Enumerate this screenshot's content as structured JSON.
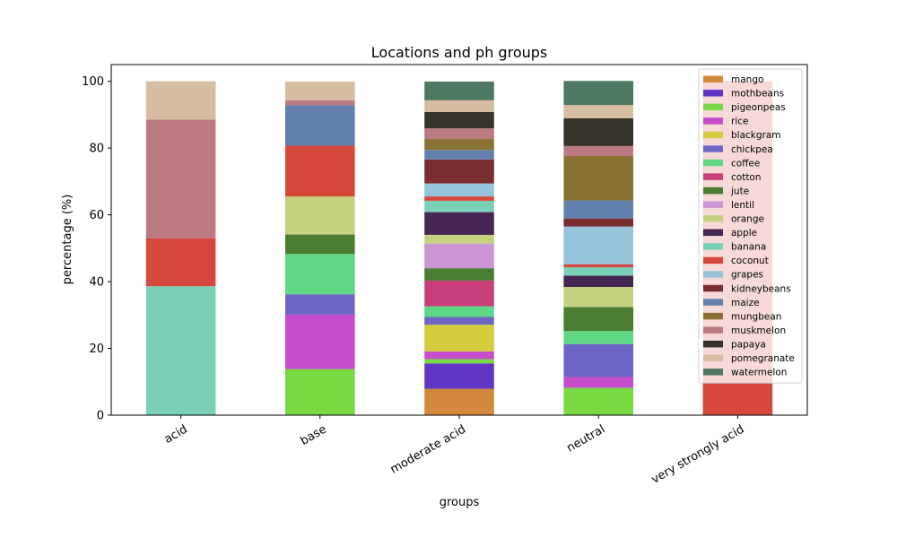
{
  "chart_data": {
    "type": "bar",
    "stacked": true,
    "title": "Locations and ph groups",
    "xlabel": "groups",
    "ylabel": "percentage (%)",
    "ylim": [
      0,
      105
    ],
    "yticks": [
      "0",
      "20",
      "40",
      "60",
      "80",
      "100"
    ],
    "categories": [
      "acid",
      "base",
      "moderate acid",
      "neutral",
      "very strongly acid"
    ],
    "legend_position": "upper right",
    "series": [
      {
        "name": "mango",
        "color": "#d4883c",
        "values": [
          0,
          0,
          7.9,
          0,
          0
        ]
      },
      {
        "name": "mothbeans",
        "color": "#6236c4",
        "values": [
          0,
          0,
          7.6,
          0,
          0
        ]
      },
      {
        "name": "pigeonpeas",
        "color": "#79d943",
        "values": [
          0,
          13.8,
          1.3,
          8.2,
          0
        ]
      },
      {
        "name": "rice",
        "color": "#c64ccc",
        "values": [
          0,
          16.3,
          2.3,
          3.2,
          0
        ]
      },
      {
        "name": "blackgram",
        "color": "#d3cc3d",
        "values": [
          0,
          0,
          8.0,
          0,
          0
        ]
      },
      {
        "name": "chickpea",
        "color": "#6e66c6",
        "values": [
          0,
          6.1,
          2.3,
          9.9,
          0
        ]
      },
      {
        "name": "coffee",
        "color": "#5fd785",
        "values": [
          0,
          12.1,
          3.2,
          3.9,
          0
        ]
      },
      {
        "name": "cotton",
        "color": "#c7407b",
        "values": [
          0,
          0,
          7.7,
          0,
          0
        ]
      },
      {
        "name": "jute",
        "color": "#4a7c32",
        "values": [
          0,
          5.8,
          3.7,
          7.2,
          0
        ]
      },
      {
        "name": "lentil",
        "color": "#cc95d5",
        "values": [
          0,
          0,
          7.4,
          0,
          0
        ]
      },
      {
        "name": "orange",
        "color": "#c5d17e",
        "values": [
          0,
          11.4,
          2.6,
          6.0,
          0
        ]
      },
      {
        "name": "apple",
        "color": "#462652",
        "values": [
          0,
          0,
          6.8,
          3.4,
          0
        ]
      },
      {
        "name": "banana",
        "color": "#7ad0b6",
        "values": [
          38.6,
          0,
          3.4,
          2.5,
          0
        ]
      },
      {
        "name": "coconut",
        "color": "#d6483c",
        "values": [
          14.4,
          15.2,
          1.3,
          0.9,
          100
        ]
      },
      {
        "name": "grapes",
        "color": "#96c4db",
        "values": [
          0,
          0,
          3.9,
          11.3,
          0
        ]
      },
      {
        "name": "kidneybeans",
        "color": "#7a2e30",
        "values": [
          0,
          0,
          7.2,
          2.4,
          0
        ]
      },
      {
        "name": "maize",
        "color": "#6280ae",
        "values": [
          0,
          12.1,
          2.8,
          5.4,
          0
        ]
      },
      {
        "name": "mungbean",
        "color": "#897234",
        "values": [
          0,
          0,
          3.3,
          13.3,
          0
        ]
      },
      {
        "name": "muskmelon",
        "color": "#ba7a80",
        "values": [
          35.5,
          1.5,
          3.2,
          3.0,
          0
        ]
      },
      {
        "name": "papaya",
        "color": "#363428",
        "values": [
          0,
          0,
          4.9,
          8.3,
          0
        ]
      },
      {
        "name": "pomegranate",
        "color": "#d6bca0",
        "values": [
          11.5,
          5.6,
          3.5,
          4.0,
          0
        ]
      },
      {
        "name": "watermelon",
        "color": "#4f7862",
        "values": [
          0,
          0,
          5.6,
          7.2,
          0
        ]
      }
    ]
  }
}
